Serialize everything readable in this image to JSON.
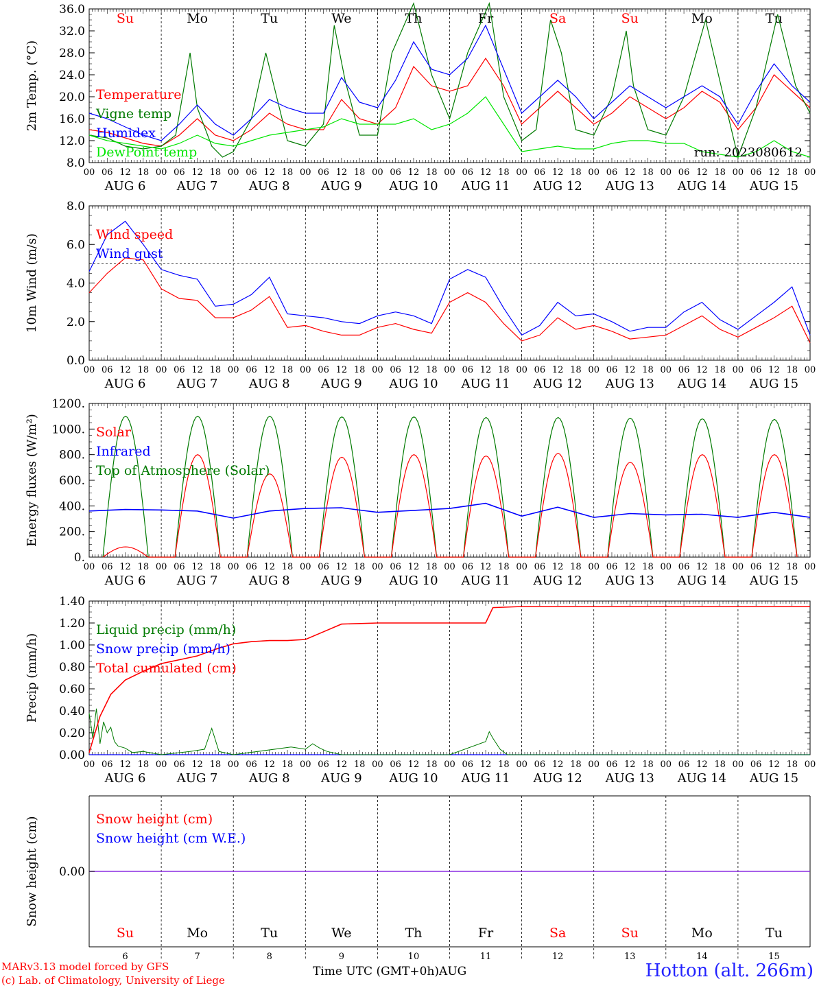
{
  "footer": {
    "credit_line1": "MARv3.13 model forced by GFS",
    "credit_line2": "(c) Lab. of Climatology, University of Liege",
    "time_axis_title": "Time UTC (GMT+0h)",
    "month": "AUG",
    "station": "Hotton (alt. 266m)"
  },
  "colors": {
    "red": "#ff0000",
    "green": "#007a00",
    "blue": "#0000ff",
    "light_green": "#00e600",
    "purple": "#8a2be2"
  },
  "chart_data": [
    {
      "type": "line",
      "panel": "temperature",
      "ylabel": "2m Temp. (°C)",
      "ylim": [
        8,
        36
      ],
      "yticks": [
        "8.0",
        "12.0",
        "16.0",
        "20.0",
        "24.0",
        "28.0",
        "32.0",
        "36.0"
      ],
      "ytick_values": [
        8,
        12,
        16,
        20,
        24,
        28,
        32,
        36
      ],
      "weekday_labels": [
        "Su",
        "Mo",
        "Tu",
        "We",
        "Th",
        "Fr",
        "Sa",
        "Su",
        "Mo",
        "Tu"
      ],
      "weekday_colors": [
        "#ff0000",
        "#000000",
        "#000000",
        "#000000",
        "#000000",
        "#000000",
        "#ff0000",
        "#ff0000",
        "#000000",
        "#000000"
      ],
      "run_label": "run: 2023080612",
      "x_unit": "days from AUG 6 00 UTC",
      "xlim": [
        0,
        10
      ],
      "series": [
        {
          "name": "Temperature",
          "color": "#ff0000",
          "x": [
            0,
            0.25,
            0.5,
            0.75,
            1,
            1.25,
            1.5,
            1.75,
            2,
            2.25,
            2.5,
            2.75,
            3,
            3.25,
            3.5,
            3.75,
            4,
            4.25,
            4.5,
            4.75,
            5,
            5.25,
            5.5,
            5.75,
            6,
            6.25,
            6.5,
            6.75,
            7,
            7.25,
            7.5,
            7.75,
            8,
            8.25,
            8.5,
            8.75,
            9,
            9.25,
            9.5,
            9.75,
            10
          ],
          "values": [
            14,
            13.5,
            12.5,
            11.5,
            11,
            13,
            16,
            13,
            12,
            14,
            17,
            15,
            14,
            14,
            19.5,
            16,
            15,
            18,
            25.5,
            22,
            21,
            22,
            27,
            22,
            15,
            18,
            21,
            18,
            15,
            17,
            20,
            18,
            16,
            18,
            21,
            19,
            14,
            18,
            24,
            21,
            18
          ]
        },
        {
          "name": "Vigne temp",
          "color": "#007a00",
          "x": [
            0,
            0.25,
            0.5,
            0.75,
            1,
            1.2,
            1.4,
            1.5,
            1.7,
            1.85,
            2,
            2.25,
            2.45,
            2.6,
            2.75,
            3,
            3.25,
            3.4,
            3.55,
            3.75,
            4,
            4.2,
            4.5,
            4.75,
            5,
            5.25,
            5.55,
            5.75,
            6,
            6.2,
            6.4,
            6.55,
            6.75,
            7,
            7.25,
            7.45,
            7.55,
            7.75,
            8,
            8.25,
            8.55,
            8.8,
            9,
            9.25,
            9.55,
            9.8,
            10
          ],
          "values": [
            13,
            12.5,
            11,
            10.5,
            11,
            13,
            28,
            18,
            11,
            9,
            10,
            16,
            28,
            20,
            12,
            11,
            15,
            33,
            23,
            13,
            13,
            28,
            37,
            24,
            16,
            28,
            37,
            20,
            12,
            14,
            34,
            28,
            14,
            13,
            20,
            32,
            22,
            14,
            13,
            20,
            34,
            20,
            9,
            18,
            35,
            22,
            17
          ]
        },
        {
          "name": "Humidex",
          "color": "#0000ff",
          "x": [
            0,
            0.25,
            0.5,
            0.75,
            1,
            1.25,
            1.5,
            1.75,
            2,
            2.25,
            2.5,
            2.75,
            3,
            3.25,
            3.5,
            3.75,
            4,
            4.25,
            4.5,
            4.75,
            5,
            5.25,
            5.5,
            5.75,
            6,
            6.25,
            6.5,
            6.75,
            7,
            7.25,
            7.5,
            7.75,
            8,
            8.25,
            8.5,
            8.75,
            9,
            9.25,
            9.5,
            9.75,
            10
          ],
          "values": [
            17,
            16,
            14.5,
            13,
            12,
            15,
            18.5,
            15,
            13,
            16,
            19.5,
            18,
            17,
            17,
            23.5,
            19,
            18,
            23,
            30,
            25,
            24,
            27,
            33,
            25,
            17,
            20,
            23,
            20,
            16,
            19,
            22,
            20,
            18,
            20,
            22,
            20,
            15,
            21,
            26,
            22,
            19
          ]
        },
        {
          "name": "DewPoint temp",
          "color": "#00e600",
          "x": [
            0,
            0.25,
            0.5,
            0.75,
            1,
            1.25,
            1.5,
            1.75,
            2,
            2.25,
            2.5,
            2.75,
            3,
            3.25,
            3.5,
            3.75,
            4,
            4.25,
            4.5,
            4.75,
            5,
            5.25,
            5.5,
            5.75,
            6,
            6.25,
            6.5,
            6.75,
            7,
            7.25,
            7.5,
            7.75,
            8,
            8.25,
            8.5,
            8.75,
            9,
            9.25,
            9.5,
            9.75,
            10
          ],
          "values": [
            13,
            12,
            11.5,
            11,
            10.5,
            11.5,
            13,
            11.5,
            11,
            12,
            13,
            13.5,
            14,
            14.5,
            16,
            15,
            15,
            15,
            16,
            14,
            15,
            17,
            20,
            15,
            10,
            10.5,
            11,
            10.5,
            10.5,
            11.5,
            12,
            12,
            11.5,
            11.5,
            10,
            9.5,
            9,
            10,
            12,
            10,
            9
          ]
        }
      ]
    },
    {
      "type": "line",
      "panel": "wind",
      "ylabel": "10m Wind (m/s)",
      "ylim": [
        0,
        8
      ],
      "yticks": [
        "0.0",
        "2.0",
        "4.0",
        "6.0",
        "8.0"
      ],
      "ytick_values": [
        0,
        2,
        4,
        6,
        8
      ],
      "reference_line": 5,
      "x_unit": "days from AUG 6 00 UTC",
      "xlim": [
        0,
        10
      ],
      "series": [
        {
          "name": "Wind speed",
          "color": "#ff0000",
          "x": [
            0,
            0.25,
            0.5,
            0.75,
            1,
            1.25,
            1.5,
            1.75,
            2,
            2.25,
            2.5,
            2.75,
            3,
            3.25,
            3.5,
            3.75,
            4,
            4.25,
            4.5,
            4.75,
            5,
            5.25,
            5.5,
            5.75,
            6,
            6.25,
            6.5,
            6.75,
            7,
            7.25,
            7.5,
            7.75,
            8,
            8.25,
            8.5,
            8.75,
            9,
            9.25,
            9.5,
            9.75,
            10
          ],
          "values": [
            3.5,
            4.5,
            5.3,
            5.2,
            3.7,
            3.2,
            3.1,
            2.2,
            2.2,
            2.6,
            3.3,
            1.7,
            1.8,
            1.5,
            1.3,
            1.3,
            1.7,
            1.9,
            1.6,
            1.4,
            3.0,
            3.5,
            3.0,
            1.9,
            1.0,
            1.3,
            2.2,
            1.6,
            1.8,
            1.5,
            1.1,
            1.2,
            1.3,
            1.8,
            2.3,
            1.6,
            1.2,
            1.7,
            2.2,
            2.8,
            0.9
          ]
        },
        {
          "name": "Wind gust",
          "color": "#0000ff",
          "x": [
            0,
            0.25,
            0.5,
            0.75,
            1,
            1.25,
            1.5,
            1.75,
            2,
            2.25,
            2.5,
            2.75,
            3,
            3.25,
            3.5,
            3.75,
            4,
            4.25,
            4.5,
            4.75,
            5,
            5.25,
            5.5,
            5.75,
            6,
            6.25,
            6.5,
            6.75,
            7,
            7.25,
            7.5,
            7.75,
            8,
            8.25,
            8.5,
            8.75,
            9,
            9.25,
            9.5,
            9.75,
            10
          ],
          "values": [
            4.6,
            6.5,
            7.2,
            6.0,
            4.7,
            4.4,
            4.2,
            2.8,
            2.9,
            3.4,
            4.3,
            2.4,
            2.3,
            2.2,
            2.0,
            1.9,
            2.3,
            2.5,
            2.3,
            1.9,
            4.2,
            4.7,
            4.3,
            2.7,
            1.3,
            1.8,
            3.0,
            2.3,
            2.4,
            2.0,
            1.5,
            1.7,
            1.7,
            2.5,
            3.0,
            2.1,
            1.6,
            2.3,
            3.0,
            3.8,
            1.3
          ]
        }
      ]
    },
    {
      "type": "line",
      "panel": "energy",
      "ylabel": "Energy fluxes (W/m²)",
      "ylim": [
        0,
        1200
      ],
      "yticks": [
        "0.",
        "200.",
        "400.",
        "600.",
        "800.",
        "1000.",
        "1200."
      ],
      "ytick_values": [
        0,
        200,
        400,
        600,
        800,
        1000,
        1200
      ],
      "x_unit": "days from AUG 6 00 UTC",
      "xlim": [
        0,
        10
      ],
      "day_start": 0.19,
      "day_end": 0.82,
      "series": [
        {
          "name": "Solar",
          "color": "#ff0000",
          "daily_peak_wm2": [
            80,
            800,
            650,
            780,
            800,
            790,
            810,
            740,
            800,
            800
          ]
        },
        {
          "name": "Infrared",
          "color": "#0000ff",
          "x": [
            0,
            0.5,
            1,
            1.5,
            2,
            2.5,
            3,
            3.5,
            4,
            4.5,
            5,
            5.5,
            6,
            6.5,
            7,
            7.5,
            8,
            8.5,
            9,
            9.5,
            10
          ],
          "values": [
            360,
            372,
            368,
            360,
            305,
            360,
            380,
            385,
            350,
            365,
            380,
            420,
            320,
            390,
            310,
            340,
            330,
            335,
            310,
            350,
            310
          ]
        },
        {
          "name": "Top of Atmosphere (Solar)",
          "color": "#007a00",
          "daily_peak_wm2": [
            1100,
            1100,
            1100,
            1095,
            1095,
            1090,
            1090,
            1085,
            1080,
            1075
          ]
        }
      ]
    },
    {
      "type": "line",
      "panel": "precip",
      "ylabel": "Precip (mm/h)",
      "ylim": [
        0,
        1.4
      ],
      "yticks": [
        "0.00",
        "0.20",
        "0.40",
        "0.60",
        "0.80",
        "1.00",
        "1.20",
        "1.40"
      ],
      "ytick_values": [
        0,
        0.2,
        0.4,
        0.6,
        0.8,
        1.0,
        1.2,
        1.4
      ],
      "x_unit": "days from AUG 6 00 UTC",
      "xlim": [
        0,
        10
      ],
      "series": [
        {
          "name": "Liquid precip (mm/h)",
          "color": "#007a00",
          "x": [
            0,
            0.05,
            0.1,
            0.15,
            0.2,
            0.25,
            0.3,
            0.35,
            0.4,
            0.5,
            0.6,
            0.75,
            1.0,
            1.4,
            1.6,
            1.7,
            1.8,
            2.0,
            2.8,
            3.0,
            3.1,
            3.2,
            3.3,
            3.5,
            4.0,
            5.0,
            5.5,
            5.55,
            5.6,
            5.7,
            5.8,
            6.0,
            10
          ],
          "values": [
            0.38,
            0.15,
            0.42,
            0.1,
            0.3,
            0.2,
            0.25,
            0.12,
            0.08,
            0.06,
            0.02,
            0.03,
            0.0,
            0.03,
            0.05,
            0.24,
            0.03,
            0.0,
            0.07,
            0.05,
            0.1,
            0.06,
            0.03,
            0.0,
            0.0,
            0.0,
            0.12,
            0.21,
            0.15,
            0.05,
            0.0,
            0.0,
            0.0
          ]
        },
        {
          "name": "Snow precip (mm/h)",
          "color": "#0000ff",
          "x": [
            0,
            10
          ],
          "values": [
            0,
            0
          ]
        },
        {
          "name": "Total cumulated (cm)",
          "color": "#ff0000",
          "x": [
            0,
            0.15,
            0.3,
            0.5,
            0.75,
            1,
            1.5,
            1.75,
            2,
            2.25,
            2.5,
            2.75,
            3,
            3.25,
            3.5,
            4,
            5,
            5.5,
            5.6,
            6,
            7,
            8,
            9,
            10
          ],
          "values": [
            0.02,
            0.35,
            0.55,
            0.68,
            0.76,
            0.83,
            0.9,
            0.96,
            1.01,
            1.03,
            1.04,
            1.04,
            1.05,
            1.12,
            1.19,
            1.2,
            1.2,
            1.2,
            1.34,
            1.35,
            1.35,
            1.35,
            1.35,
            1.35
          ]
        }
      ]
    },
    {
      "type": "line",
      "panel": "snow",
      "ylabel": "Snow height (cm)",
      "ytick_label": "0.00",
      "x_unit": "days from AUG 6 00 UTC",
      "xlim": [
        0,
        10
      ],
      "weekday_labels": [
        "Su",
        "Mo",
        "Tu",
        "We",
        "Th",
        "Fr",
        "Sa",
        "Su",
        "Mo",
        "Tu"
      ],
      "weekday_colors": [
        "#ff0000",
        "#000000",
        "#000000",
        "#000000",
        "#000000",
        "#000000",
        "#ff0000",
        "#ff0000",
        "#000000",
        "#000000"
      ],
      "day_numbers": [
        "6",
        "7",
        "8",
        "9",
        "10",
        "11",
        "12",
        "13",
        "14",
        "15"
      ],
      "series": [
        {
          "name": "Snow height (cm)",
          "color": "#ff0000",
          "x": [
            0,
            10
          ],
          "values": [
            0,
            0
          ]
        },
        {
          "name": "Snow height (cm W.E.)",
          "color": "#0000ff",
          "x": [
            0,
            10
          ],
          "values": [
            0,
            0
          ]
        }
      ]
    }
  ],
  "x_axis": {
    "hour_labels": [
      "00",
      "06",
      "12",
      "18"
    ],
    "end_label": "00",
    "date_labels": [
      "AUG  6",
      "AUG  7",
      "AUG  8",
      "AUG  9",
      "AUG 10",
      "AUG 11",
      "AUG 12",
      "AUG 13",
      "AUG 14",
      "AUG 15"
    ]
  }
}
